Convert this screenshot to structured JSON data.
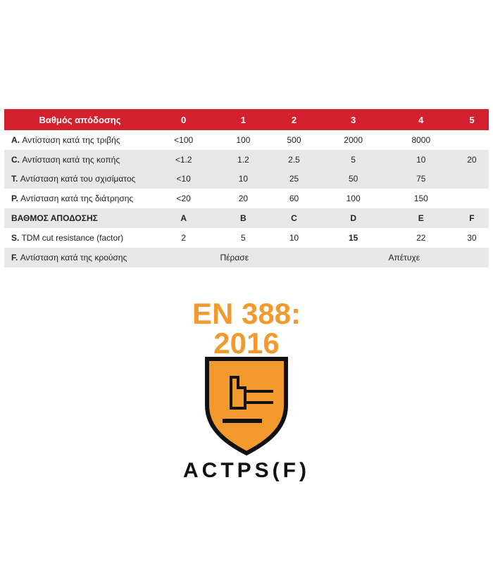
{
  "table": {
    "header": [
      "Βαθμός απόδοσης",
      "0",
      "1",
      "2",
      "3",
      "4",
      "5"
    ],
    "rows": [
      {
        "prefix": "A.",
        "label": "Αντίσταση κατά της τριβής",
        "cells": [
          "<100",
          "100",
          "500",
          "2000",
          "8000",
          ""
        ]
      },
      {
        "prefix": "C.",
        "label": "Αντίσταση κατά της κοπής",
        "cells": [
          "<1.2",
          "1.2",
          "2.5",
          "5",
          "10",
          "20"
        ]
      },
      {
        "prefix": "T.",
        "label": " Αντίσταση κατά του σχισίματος",
        "cells": [
          "<10",
          "10",
          "25",
          "50",
          "75",
          ""
        ]
      },
      {
        "prefix": "P.",
        "label": " Αντίσταση κατά της διάτρησης",
        "cells": [
          "<20",
          "20",
          "60",
          "100",
          "150",
          ""
        ]
      },
      {
        "prefix": "",
        "label": "ΒΑΘΜΟΣ ΑΠΟΔΟΣΗΣ",
        "cells": [
          "A",
          "B",
          "C",
          "D",
          "E",
          "F"
        ]
      },
      {
        "prefix": "S.",
        "label": "TDM cut resistance (factor)",
        "cells": [
          "2",
          "5",
          "10",
          "15",
          "22",
          "30"
        ]
      }
    ],
    "impact": {
      "prefix": "F.",
      "label": "Αντίσταση κατά της κρούσης",
      "pass": "Πέρασε",
      "fail": "Απέτυχε"
    }
  },
  "logo": {
    "line1": "EN 388:",
    "line2": "2016",
    "marks": "ACTPS(F)",
    "shield_color": "#f39a2e",
    "header_color": "#d3202e"
  }
}
